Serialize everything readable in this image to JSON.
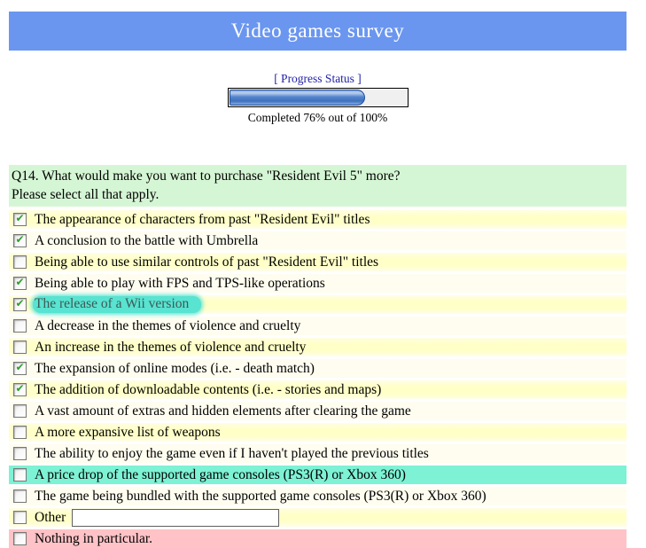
{
  "header": {
    "title": "Video games survey",
    "bg_color": "#6a96ef"
  },
  "progress": {
    "label": "[ Progress Status ]",
    "percent": 76,
    "caption": "Completed 76% out of 100%",
    "fill_color": "#4a7cc4",
    "label_color": "#2222aa"
  },
  "question": {
    "title": "Q14. What would make you want to purchase \"Resident Evil 5\" more?",
    "instruction": "Please select all that apply."
  },
  "options": [
    {
      "label": "The appearance of characters from past \"Resident Evil\" titles",
      "checked": true,
      "row_style": "yellow"
    },
    {
      "label": "A conclusion to the battle with Umbrella",
      "checked": true,
      "row_style": "ivory"
    },
    {
      "label": "Being able to use similar controls of past \"Resident Evil\" titles",
      "checked": false,
      "row_style": "yellow"
    },
    {
      "label": "Being able to play with FPS and TPS-like operations",
      "checked": true,
      "row_style": "ivory"
    },
    {
      "label": "The release of a Wii version",
      "checked": true,
      "row_style": "yellow",
      "highlighted": true
    },
    {
      "label": "A decrease in the themes of violence and cruelty",
      "checked": false,
      "row_style": "ivory"
    },
    {
      "label": "An increase in the themes of violence and cruelty",
      "checked": false,
      "row_style": "yellow"
    },
    {
      "label": "The expansion of online modes (i.e. - death match)",
      "checked": true,
      "row_style": "ivory"
    },
    {
      "label": "The addition of downloadable contents (i.e. - stories and maps)",
      "checked": true,
      "row_style": "yellow"
    },
    {
      "label": "A vast amount of extras and hidden elements after clearing the game",
      "checked": false,
      "row_style": "ivory"
    },
    {
      "label": "A more expansive list of weapons",
      "checked": false,
      "row_style": "yellow"
    },
    {
      "label": "The ability to enjoy the game even if I haven't played the previous titles",
      "checked": false,
      "row_style": "ivory"
    },
    {
      "label": "A price drop of the supported game consoles (PS3(R) or Xbox 360)",
      "checked": false,
      "row_style": "aqua"
    },
    {
      "label": "The game being bundled with the supported game consoles (PS3(R) or Xbox 360)",
      "checked": false,
      "row_style": "ivory"
    },
    {
      "label": "Other",
      "checked": false,
      "row_style": "yellow",
      "has_input": true,
      "input_value": ""
    },
    {
      "label": "Nothing in particular.",
      "checked": false,
      "row_style": "pink"
    }
  ],
  "colors": {
    "question_bg": "#d5f6d5",
    "row_yellow": "#ffffc8",
    "row_ivory": "#fffdf0",
    "row_aqua": "#7df2d4",
    "row_pink": "#ffc3c7",
    "marker_highlight": "#59e3d1",
    "check_green": "#2f9e2f"
  }
}
